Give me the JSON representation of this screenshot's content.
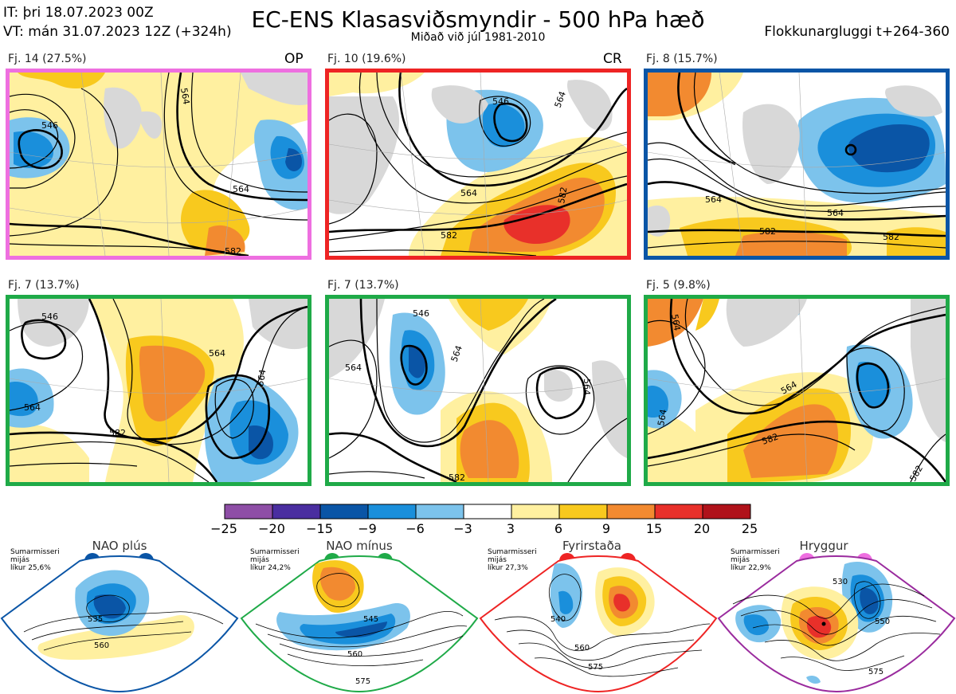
{
  "header": {
    "it_line": "IT: þri 18.07.2023 00Z",
    "vt_line": "VT: mán 31.07.2023 12Z  (+324h)",
    "title": "EC-ENS Klasasviðsmyndir - 500 hPa hæð",
    "subtitle": "Miðað við júl 1981-2010",
    "window": "Flokkunargluggi t+264-360"
  },
  "panels": [
    {
      "label": "Fj. 14 (27.5%)",
      "tag": "OP",
      "border": "#ee6fe0"
    },
    {
      "label": "Fj. 10 (19.6%)",
      "tag": "CR",
      "border": "#ee2424"
    },
    {
      "label": "Fj. 8 (15.7%)",
      "tag": "",
      "border": "#0a55a6"
    },
    {
      "label": "Fj. 7 (13.7%)",
      "tag": "",
      "border": "#1faa48"
    },
    {
      "label": "Fj. 7 (13.7%)",
      "tag": "",
      "border": "#1faa48"
    },
    {
      "label": "Fj. 5 (9.8%)",
      "tag": "",
      "border": "#1faa48"
    }
  ],
  "contour_labels": {
    "p1": [
      "546",
      "564",
      "564",
      "582"
    ],
    "p2": [
      "546",
      "564",
      "564",
      "582",
      "582"
    ],
    "p3": [
      "564",
      "564",
      "582",
      "582"
    ],
    "p4": [
      "546",
      "564",
      "564",
      "564",
      "582"
    ],
    "p5": [
      "546",
      "564",
      "564",
      "564",
      "582"
    ],
    "p6": [
      "564",
      "564",
      "582",
      "582",
      "564"
    ]
  },
  "colorbar": {
    "ticks": [
      "−25",
      "−20",
      "−15",
      "−9",
      "−6",
      "−3",
      "3",
      "6",
      "9",
      "15",
      "20",
      "25"
    ],
    "colors": [
      "#8e4ea6",
      "#4a2ea0",
      "#0a55a6",
      "#1a8fdb",
      "#7cc3ec",
      "#ffffff",
      "#fff0a0",
      "#f8c91e",
      "#f28a30",
      "#e8302a",
      "#b0121a"
    ]
  },
  "regimes": [
    {
      "name": "NAO plús",
      "info": [
        "Sumarmisseri",
        "mijás",
        "líkur 25,6%"
      ],
      "color": "#0a55a6",
      "contours": [
        "535",
        "560"
      ]
    },
    {
      "name": "NAO mínus",
      "info": [
        "Sumarmisseri",
        "mijás",
        "líkur 24,2%"
      ],
      "color": "#1faa48",
      "contours": [
        "545",
        "560",
        "575"
      ]
    },
    {
      "name": "Fyrirstaða",
      "info": [
        "Sumarmisseri",
        "mijás",
        "líkur 27,3%"
      ],
      "color": "#ee2424",
      "contours": [
        "540",
        "560",
        "575"
      ]
    },
    {
      "name": "Hryggur",
      "info": [
        "Sumarmisseri",
        "mijás",
        "líkur 22,9%"
      ],
      "color": "#ee6fe0",
      "contours": [
        "530",
        "550",
        "575"
      ]
    }
  ]
}
